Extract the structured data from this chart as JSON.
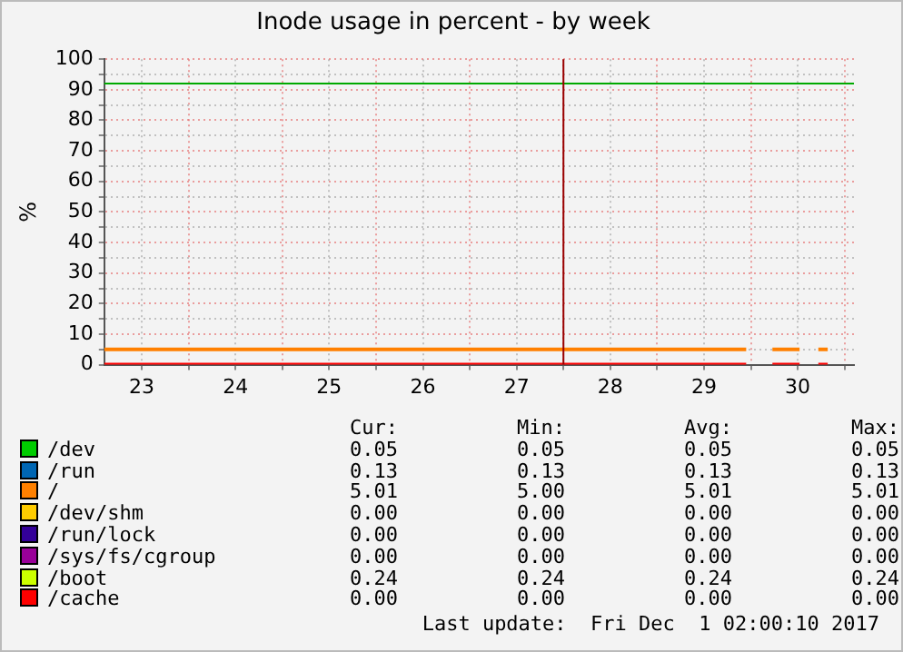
{
  "chart_data": {
    "type": "line",
    "title": "Inode usage in percent - by week",
    "ylabel": "%",
    "xlim": [
      22.6,
      30.6
    ],
    "xticks": [
      23,
      {
        "value": 23.5,
        "label": null
      },
      24,
      {
        "value": 24.5,
        "label": null
      },
      25,
      {
        "value": 25.5,
        "label": null
      },
      26,
      {
        "value": 26.5,
        "label": null
      },
      27,
      {
        "value": 27.5,
        "label": null
      },
      28,
      {
        "value": 28.5,
        "label": null
      },
      29,
      {
        "value": 29.5,
        "label": null
      },
      30,
      {
        "value": 30.5,
        "label": null
      }
    ],
    "ylim": [
      0,
      100
    ],
    "yticks": [
      0,
      {
        "value": 5,
        "label": null
      },
      10,
      {
        "value": 15,
        "label": null
      },
      20,
      {
        "value": 25,
        "label": null
      },
      30,
      {
        "value": 35,
        "label": null
      },
      40,
      {
        "value": 45,
        "label": null
      },
      50,
      {
        "value": 55,
        "label": null
      },
      60,
      {
        "value": 65,
        "label": null
      },
      70,
      {
        "value": 75,
        "label": null
      },
      80,
      {
        "value": 85,
        "label": null
      },
      90,
      {
        "value": 95,
        "label": null
      },
      100
    ],
    "grid": true,
    "legend": "bottom",
    "marker": "none",
    "line_style": "solid",
    "ref_lines": [
      {
        "axis": "y",
        "value": 92,
        "color": "#00aa00"
      },
      {
        "axis": "x",
        "value": 27.5,
        "color": "#990000"
      }
    ],
    "series": [
      {
        "name": "/dev",
        "color": "#00cc00"
      },
      {
        "name": "/run",
        "color": "#0066b3"
      },
      {
        "name": "/",
        "color": "#ff8000",
        "x": [
          22.6,
          29.45,
          29.46,
          29.73,
          30.02,
          30.03,
          30.22,
          30.32
        ],
        "values": [
          5,
          5,
          null,
          5,
          5,
          null,
          5,
          5
        ]
      },
      {
        "name": "/dev/shm",
        "color": "#ffcc00"
      },
      {
        "name": "/run/lock",
        "color": "#330099"
      },
      {
        "name": "/sys/fs/cgroup",
        "color": "#990099"
      },
      {
        "name": "/boot",
        "color": "#ccff00"
      },
      {
        "name": "/cache",
        "color": "#ff0000",
        "x": [
          22.6,
          29.45,
          29.46,
          29.73,
          30.02,
          30.03,
          30.22,
          30.32
        ],
        "values": [
          0,
          0,
          null,
          0,
          0,
          null,
          0,
          0
        ]
      }
    ],
    "annotations": [
      "Cur:",
      "Min:",
      "Avg:",
      "Max:",
      "0.05",
      "0.05",
      "0.05",
      "0.05",
      "0.13",
      "0.13",
      "0.13",
      "0.13",
      "5.01",
      "5.00",
      "5.01",
      "5.01",
      "0.00",
      "0.00",
      "0.00",
      "0.00",
      "0.00",
      "0.00",
      "0.00",
      "0.00",
      "0.00",
      "0.00",
      "0.00",
      "0.00",
      "0.24",
      "0.24",
      "0.24",
      "0.24",
      "0.00",
      "0.00",
      "0.00",
      "0.00",
      "Last update:  Fri Dec  1 02:00:10 2017"
    ]
  }
}
